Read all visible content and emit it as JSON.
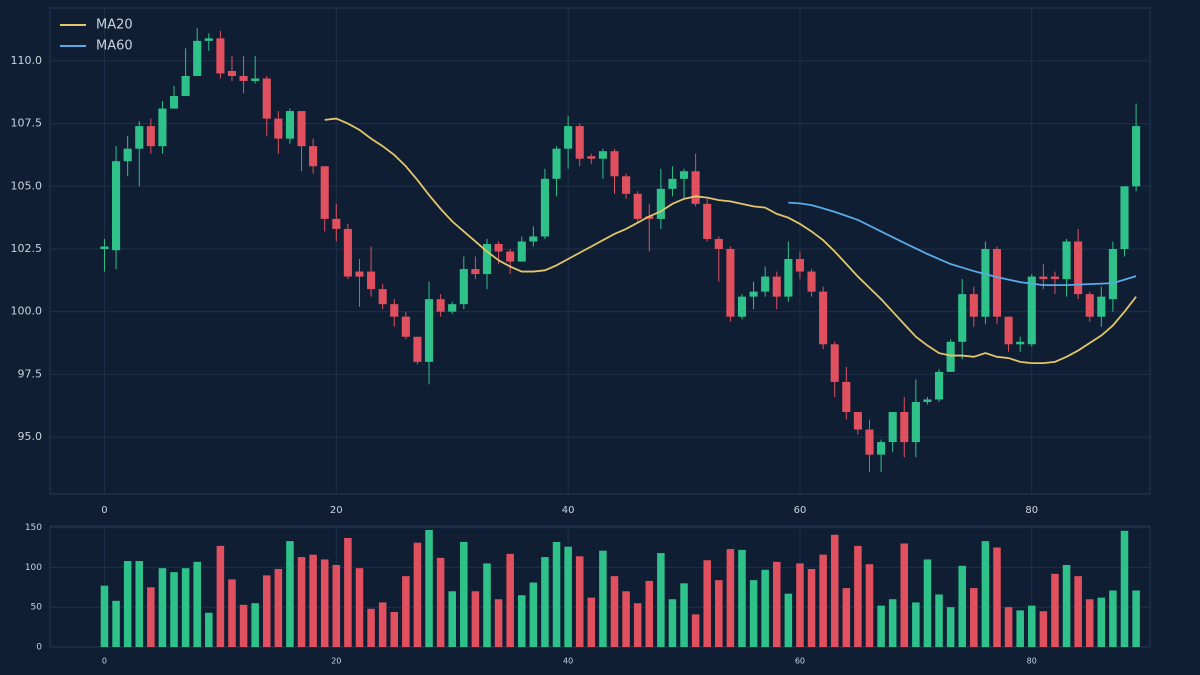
{
  "chart_data": [
    {
      "type": "candlestick",
      "x": [
        0,
        1,
        2,
        3,
        4,
        5,
        6,
        7,
        8,
        9,
        10,
        11,
        12,
        13,
        14,
        15,
        16,
        17,
        18,
        19,
        20,
        21,
        22,
        23,
        24,
        25,
        26,
        27,
        28,
        29,
        30,
        31,
        32,
        33,
        34,
        35,
        36,
        37,
        38,
        39,
        40,
        41,
        42,
        43,
        44,
        45,
        46,
        47,
        48,
        49,
        50,
        51,
        52,
        53,
        54,
        55,
        56,
        57,
        58,
        59,
        60,
        61,
        62,
        63,
        64,
        65,
        66,
        67,
        68,
        69,
        70,
        71,
        72,
        73,
        74,
        75,
        76,
        77,
        78,
        79,
        80,
        81,
        82,
        83,
        84,
        85,
        86,
        87,
        88,
        89
      ],
      "open": [
        102.5,
        102.45,
        106.0,
        106.5,
        107.4,
        106.6,
        108.1,
        108.6,
        109.4,
        110.8,
        110.9,
        109.6,
        109.4,
        109.2,
        109.3,
        107.7,
        106.9,
        108.0,
        106.6,
        105.8,
        103.7,
        103.3,
        101.6,
        101.6,
        100.9,
        100.3,
        99.8,
        99.0,
        98.0,
        100.5,
        100.0,
        100.3,
        101.7,
        101.5,
        102.7,
        102.4,
        102.0,
        102.8,
        103.0,
        105.3,
        106.5,
        107.4,
        106.2,
        106.1,
        106.4,
        105.4,
        104.7,
        103.8,
        103.7,
        104.9,
        105.3,
        105.6,
        104.3,
        102.9,
        102.5,
        99.8,
        100.6,
        100.8,
        101.4,
        100.6,
        102.1,
        101.6,
        100.8,
        98.7,
        97.2,
        96.0,
        95.3,
        94.3,
        94.8,
        96.0,
        94.8,
        96.4,
        96.5,
        97.6,
        98.8,
        100.7,
        99.8,
        102.5,
        99.8,
        98.7,
        98.7,
        101.4,
        101.4,
        101.3,
        102.8,
        100.7,
        99.8,
        100.5,
        102.5,
        105.0
      ],
      "high": [
        102.9,
        106.6,
        107.0,
        107.6,
        107.7,
        108.4,
        109.0,
        110.5,
        111.3,
        111.1,
        111.2,
        110.2,
        110.2,
        110.2,
        109.4,
        108.0,
        108.1,
        108.0,
        106.9,
        105.8,
        104.3,
        103.5,
        102.1,
        102.6,
        101.1,
        100.5,
        100.0,
        99.0,
        101.2,
        100.7,
        100.4,
        102.2,
        102.2,
        102.9,
        102.8,
        102.5,
        103.0,
        103.4,
        105.7,
        106.6,
        107.8,
        107.5,
        106.3,
        106.5,
        106.5,
        105.5,
        104.8,
        104.3,
        105.7,
        105.8,
        105.7,
        106.3,
        104.5,
        103.0,
        102.6,
        100.7,
        101.2,
        101.8,
        101.6,
        102.8,
        102.4,
        101.7,
        101.0,
        98.8,
        97.8,
        96.0,
        95.7,
        94.9,
        96.0,
        96.6,
        97.3,
        96.6,
        97.7,
        98.9,
        101.3,
        101.0,
        102.8,
        102.6,
        99.8,
        99.0,
        101.5,
        101.9,
        101.6,
        102.9,
        103.3,
        100.8,
        101.0,
        102.8,
        105.0,
        108.3
      ],
      "low": [
        101.6,
        101.7,
        105.4,
        105.0,
        106.3,
        106.3,
        108.1,
        108.6,
        109.4,
        110.4,
        109.3,
        109.2,
        108.7,
        109.1,
        107.0,
        106.3,
        106.7,
        105.6,
        105.5,
        103.2,
        102.8,
        101.3,
        100.2,
        100.6,
        100.1,
        99.4,
        98.9,
        97.9,
        97.1,
        99.8,
        99.9,
        100.1,
        101.3,
        100.9,
        101.9,
        101.5,
        102.0,
        102.6,
        102.9,
        104.6,
        105.7,
        105.8,
        105.9,
        105.3,
        104.7,
        104.5,
        103.6,
        102.4,
        103.3,
        104.6,
        104.5,
        104.2,
        102.8,
        101.2,
        99.6,
        99.7,
        100.1,
        100.6,
        100.1,
        100.4,
        101.3,
        100.6,
        98.5,
        96.6,
        95.7,
        95.1,
        93.6,
        93.6,
        94.4,
        94.2,
        94.2,
        96.3,
        96.4,
        97.6,
        98.1,
        99.4,
        99.5,
        99.5,
        98.4,
        98.4,
        98.6,
        100.9,
        100.7,
        100.6,
        100.5,
        99.6,
        99.4,
        100.0,
        102.2,
        104.8
      ],
      "close": [
        102.6,
        106.0,
        106.5,
        107.4,
        106.6,
        108.1,
        108.6,
        109.4,
        110.8,
        110.9,
        109.5,
        109.4,
        109.2,
        109.3,
        107.7,
        106.9,
        108.0,
        106.6,
        105.8,
        103.7,
        103.3,
        101.4,
        101.4,
        100.9,
        100.3,
        99.8,
        99.0,
        98.0,
        100.5,
        100.0,
        100.3,
        101.7,
        101.5,
        102.7,
        102.4,
        102.0,
        102.8,
        103.0,
        105.3,
        106.5,
        107.4,
        106.1,
        106.1,
        106.4,
        105.4,
        104.7,
        103.7,
        103.7,
        104.9,
        105.3,
        105.6,
        104.3,
        102.9,
        102.5,
        99.8,
        100.6,
        100.8,
        101.4,
        100.6,
        102.1,
        101.6,
        100.8,
        98.7,
        97.2,
        96.0,
        95.3,
        94.3,
        94.8,
        96.0,
        94.8,
        96.4,
        96.5,
        97.6,
        98.8,
        100.7,
        99.8,
        102.5,
        99.8,
        98.7,
        98.8,
        101.4,
        101.3,
        101.3,
        102.8,
        100.7,
        99.8,
        100.6,
        102.5,
        105.0,
        107.4
      ],
      "up_color": "#2ec28a",
      "down_color": "#e0505f",
      "series": [
        {
          "name": "MA20",
          "color": "#e3c56b",
          "values": [
            null,
            null,
            null,
            null,
            null,
            null,
            null,
            null,
            null,
            null,
            null,
            null,
            null,
            null,
            null,
            null,
            null,
            null,
            null,
            107.65,
            107.7,
            107.5,
            107.25,
            106.9,
            106.6,
            106.25,
            105.8,
            105.25,
            104.65,
            104.1,
            103.6,
            103.2,
            102.8,
            102.4,
            102.05,
            101.8,
            101.6,
            101.6,
            101.65,
            101.85,
            102.1,
            102.35,
            102.6,
            102.85,
            103.1,
            103.3,
            103.55,
            103.8,
            104.0,
            104.3,
            104.5,
            104.6,
            104.55,
            104.45,
            104.4,
            104.3,
            104.2,
            104.15,
            103.9,
            103.75,
            103.5,
            103.2,
            102.85,
            102.4,
            101.9,
            101.4,
            100.95,
            100.5,
            100.0,
            99.5,
            99.0,
            98.65,
            98.35,
            98.25,
            98.25,
            98.2,
            98.35,
            98.2,
            98.15,
            98.0,
            97.95,
            97.95,
            98.0,
            98.2,
            98.45,
            98.75,
            99.05,
            99.45,
            100.0,
            100.6
          ]
        },
        {
          "name": "MA60",
          "color": "#5aaae6",
          "values": [
            null,
            null,
            null,
            null,
            null,
            null,
            null,
            null,
            null,
            null,
            null,
            null,
            null,
            null,
            null,
            null,
            null,
            null,
            null,
            null,
            null,
            null,
            null,
            null,
            null,
            null,
            null,
            null,
            null,
            null,
            null,
            null,
            null,
            null,
            null,
            null,
            null,
            null,
            null,
            null,
            null,
            null,
            null,
            null,
            null,
            null,
            null,
            null,
            null,
            null,
            null,
            null,
            null,
            null,
            null,
            null,
            null,
            null,
            null,
            104.35,
            104.32,
            104.25,
            104.12,
            103.98,
            103.82,
            103.66,
            103.43,
            103.2,
            102.97,
            102.74,
            102.52,
            102.3,
            102.1,
            101.9,
            101.76,
            101.62,
            101.5,
            101.38,
            101.28,
            101.18,
            101.12,
            101.06,
            101.06,
            101.06,
            101.08,
            101.1,
            101.12,
            101.14,
            101.28,
            101.42
          ]
        }
      ],
      "xlim": [
        -4.7,
        90.2
      ],
      "ylim": [
        92.73,
        112.11
      ],
      "xticks": [
        0,
        20,
        40,
        60,
        80
      ],
      "yticks": [
        {
          "value": 95,
          "label": "95.0"
        },
        97.5,
        {
          "value": 100,
          "label": "100.0"
        },
        102.5,
        {
          "value": 105,
          "label": "105.0"
        },
        107.5,
        {
          "value": 110,
          "label": "110.0"
        }
      ],
      "grid": true,
      "legend": "upper left"
    },
    {
      "type": "bar",
      "x": [
        0,
        1,
        2,
        3,
        4,
        5,
        6,
        7,
        8,
        9,
        10,
        11,
        12,
        13,
        14,
        15,
        16,
        17,
        18,
        19,
        20,
        21,
        22,
        23,
        24,
        25,
        26,
        27,
        28,
        29,
        30,
        31,
        32,
        33,
        34,
        35,
        36,
        37,
        38,
        39,
        40,
        41,
        42,
        43,
        44,
        45,
        46,
        47,
        48,
        49,
        50,
        51,
        52,
        53,
        54,
        55,
        56,
        57,
        58,
        59,
        60,
        61,
        62,
        63,
        64,
        65,
        66,
        67,
        68,
        69,
        70,
        71,
        72,
        73,
        74,
        75,
        76,
        77,
        78,
        79,
        80,
        81,
        82,
        83,
        84,
        85,
        86,
        87,
        88,
        89
      ],
      "values": [
        77,
        58,
        108,
        108,
        75,
        99,
        94,
        99,
        107,
        43,
        127,
        85,
        53,
        55,
        90,
        98,
        133,
        113,
        116,
        110,
        103,
        137,
        99,
        48,
        56,
        44,
        89,
        131,
        147,
        112,
        70,
        132,
        70,
        105,
        60,
        117,
        65,
        81,
        113,
        132,
        126,
        114,
        62,
        121,
        89,
        70,
        55,
        83,
        118,
        60,
        80,
        41,
        109,
        84,
        123,
        122,
        84,
        97,
        107,
        67,
        105,
        98,
        116,
        141,
        74,
        127,
        104,
        52,
        60,
        130,
        56,
        110,
        66,
        50,
        102,
        74,
        133,
        125,
        50,
        46,
        52,
        45,
        92,
        103,
        89,
        60,
        62,
        71,
        146,
        71
      ],
      "xlim": [
        -4.7,
        90.2
      ],
      "ylim": [
        0,
        152
      ],
      "xticks": [
        0,
        20,
        40,
        60,
        80
      ],
      "yticks": [
        0,
        50,
        100,
        150
      ],
      "grid": true
    }
  ]
}
